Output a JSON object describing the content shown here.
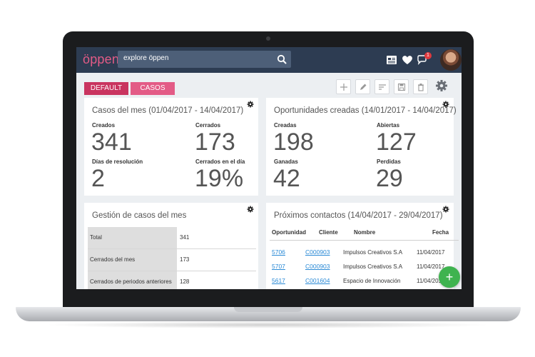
{
  "app": {
    "logo": "öppen"
  },
  "search": {
    "text": "explore öppen"
  },
  "topbar": {
    "notification_count": "1"
  },
  "tabs": {
    "default": "DEFAULT",
    "casos": "CASOS"
  },
  "cases_month": {
    "title": "Casos del mes (01/04/2017 - 14/04/2017)",
    "created_label": "Creados",
    "created_value": "341",
    "closed_label": "Cerrados",
    "closed_value": "173",
    "resolution_days_label": "Días de resolución",
    "resolution_days_value": "2",
    "closed_same_day_label": "Cerrados en el día",
    "closed_same_day_value": "19%"
  },
  "opportunities": {
    "title": "Oportunidades creadas (14/01/2017 - 14/04/2017)",
    "created_label": "Creadas",
    "created_value": "198",
    "open_label": "Abiertas",
    "open_value": "127",
    "won_label": "Ganadas",
    "won_value": "42",
    "lost_label": "Perdidas",
    "lost_value": "29"
  },
  "case_management": {
    "title": "Gestión de casos del mes",
    "rows": [
      {
        "label": "Total",
        "value": "341"
      },
      {
        "label": "Cerrados del mes",
        "value": "173"
      },
      {
        "label": "Cerrados de periodos anteriores",
        "value": "128"
      }
    ]
  },
  "contacts": {
    "title": "Próximos contactos (14/04/2017 - 29/04/2017)",
    "headers": {
      "opportunity": "Oportunidad",
      "client": "Cliente",
      "name": "Nombre",
      "date": "Fecha"
    },
    "rows": [
      {
        "opportunity": "5706",
        "client": "C000903",
        "name": "Impulsos Creativos S.A",
        "date": "11/04/2017"
      },
      {
        "opportunity": "5707",
        "client": "C000903",
        "name": "Impulsos Creativos S.A",
        "date": "11/04/2017"
      },
      {
        "opportunity": "5617",
        "client": "C001604",
        "name": "Espacio de Innovación",
        "date": "11/04/2017"
      }
    ]
  },
  "fab": {
    "label": "+"
  },
  "colors": {
    "topbar": "#2d3c52",
    "brand_pink": "#e35b86",
    "tab_active": "#c9345f",
    "link": "#2a8ad6",
    "fab": "#3fb34f"
  }
}
